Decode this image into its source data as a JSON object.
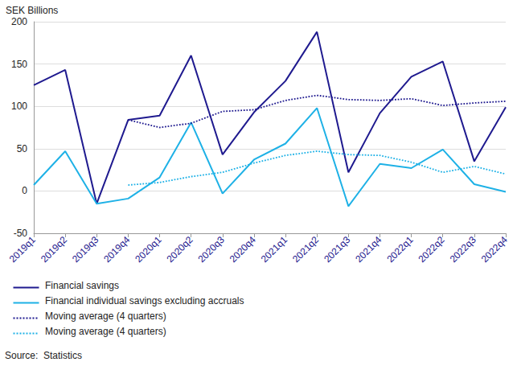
{
  "chart_data": {
    "type": "line",
    "y_label": "SEK Billions",
    "source": "Source:  Statistics",
    "categories": [
      "2019q1",
      "2019q2",
      "2019q3",
      "2019q4",
      "2020q1",
      "2020q2",
      "2020q3",
      "2020q4",
      "2021q1",
      "2021q2",
      "2021q3",
      "2021q4",
      "2022q1",
      "2022q2",
      "2022q3",
      "2022q4"
    ],
    "series": [
      {
        "name": "Financial savings",
        "color": "#1f1a8f",
        "line_style": "solid",
        "values": [
          125,
          143,
          -15,
          84,
          89,
          160,
          43,
          93,
          130,
          188,
          22,
          92,
          135,
          153,
          35,
          99
        ]
      },
      {
        "name": "Financial individual savings excluding accruals",
        "color": "#1eb1e6",
        "line_style": "solid",
        "values": [
          7,
          47,
          -15,
          -9,
          16,
          81,
          -3,
          37,
          56,
          98,
          -18,
          32,
          27,
          49,
          8,
          -1
        ]
      },
      {
        "name": "Moving average (4 quarters)",
        "color": "#1f1a8f",
        "line_style": "dotted",
        "values": [
          null,
          null,
          null,
          84,
          75,
          80,
          94,
          96,
          107,
          113,
          108,
          107,
          109,
          101,
          104,
          106
        ]
      },
      {
        "name": "Moving average (4 quarters)",
        "color": "#1eb1e6",
        "line_style": "dotted",
        "values": [
          null,
          null,
          null,
          7,
          10,
          17,
          22,
          33,
          42,
          47,
          43,
          42,
          34,
          22,
          29,
          20
        ]
      }
    ],
    "ylim": [
      -50,
      200
    ],
    "yticks": [
      -50,
      0,
      50,
      100,
      150,
      200
    ],
    "grid": true,
    "legend": "bottom-left"
  }
}
